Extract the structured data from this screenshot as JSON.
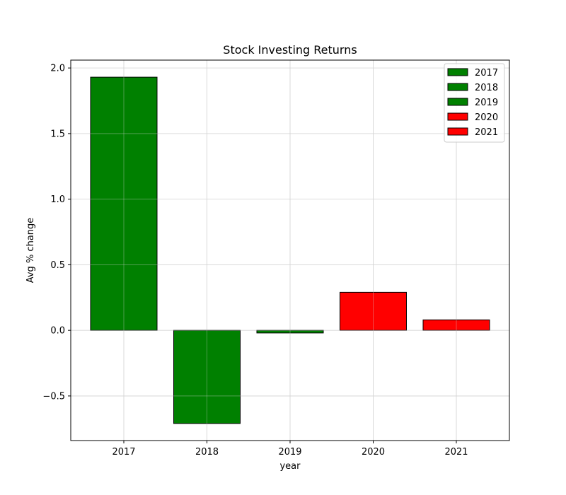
{
  "chart_data": {
    "type": "bar",
    "title": "Stock Investing Returns",
    "xlabel": "year",
    "ylabel": "Avg % change",
    "categories": [
      "2017",
      "2018",
      "2019",
      "2020",
      "2021"
    ],
    "values": [
      1.93,
      -0.71,
      -0.02,
      0.29,
      0.08
    ],
    "bar_colors": [
      "#008000",
      "#008000",
      "#008000",
      "#ff0000",
      "#ff0000"
    ],
    "edge_color": "#000000",
    "ylim": [
      -0.84,
      2.06
    ],
    "yticks": [
      -0.5,
      0.0,
      0.5,
      1.0,
      1.5,
      2.0
    ],
    "ytick_labels": [
      "−0.5",
      "0.0",
      "0.5",
      "1.0",
      "1.5",
      "2.0"
    ],
    "grid": true,
    "legend": {
      "position": "top-right",
      "entries": [
        {
          "label": "2017",
          "color": "#008000"
        },
        {
          "label": "2018",
          "color": "#008000"
        },
        {
          "label": "2019",
          "color": "#008000"
        },
        {
          "label": "2020",
          "color": "#ff0000"
        },
        {
          "label": "2021",
          "color": "#ff0000"
        }
      ]
    }
  }
}
